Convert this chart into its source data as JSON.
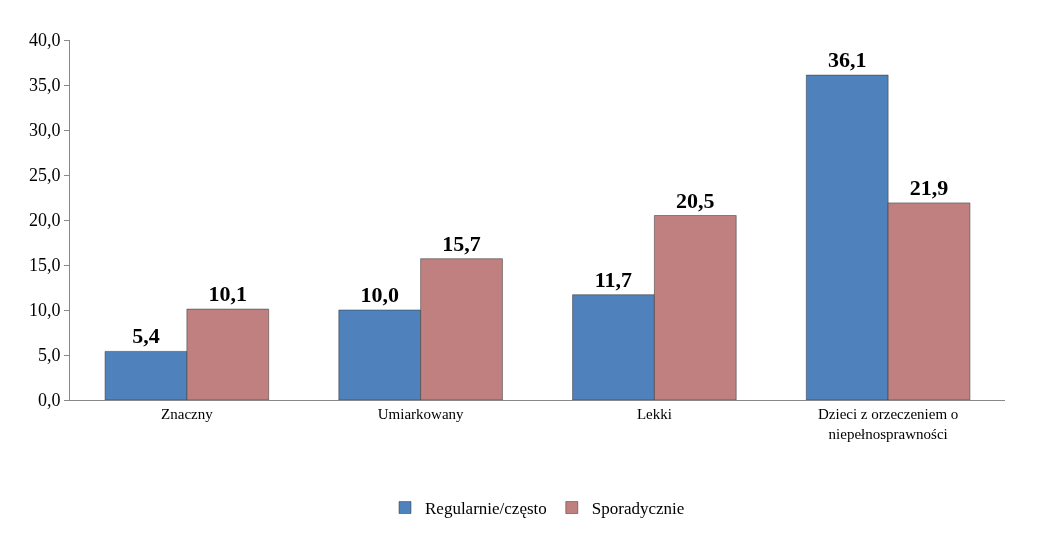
{
  "chart_data": {
    "type": "bar",
    "categories": [
      "Znaczny",
      "Umiarkowany",
      "Lekki",
      "Dzieci z orzeczeniem o niepełnosprawności"
    ],
    "series": [
      {
        "name": "Regularnie/często",
        "color": "#4f81bd",
        "values": [
          5.4,
          10.0,
          11.7,
          36.1
        ],
        "value_labels": [
          "5,4",
          "10,0",
          "11,7",
          "36,1"
        ]
      },
      {
        "name": "Sporadycznie",
        "color": "#c0807f",
        "values": [
          10.1,
          15.7,
          20.5,
          21.9
        ],
        "value_labels": [
          "10,1",
          "15,7",
          "20,5",
          "21,9"
        ]
      }
    ],
    "ylim": [
      0,
      40
    ],
    "yticks": [
      {
        "value": 0,
        "label": "0,0"
      },
      {
        "value": 5,
        "label": "5,0"
      },
      {
        "value": 10,
        "label": "10,0"
      },
      {
        "value": 15,
        "label": "15,0"
      },
      {
        "value": 20,
        "label": "20,0"
      },
      {
        "value": 25,
        "label": "25,0"
      },
      {
        "value": 30,
        "label": "30,0"
      },
      {
        "value": 35,
        "label": "35,0"
      },
      {
        "value": 40,
        "label": "40,0"
      }
    ],
    "grid": false,
    "legend": "bottom"
  }
}
